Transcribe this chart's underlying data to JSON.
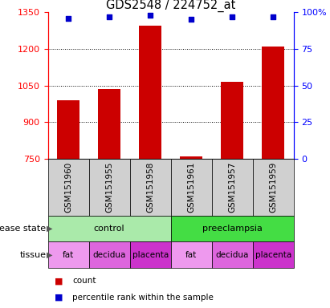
{
  "title": "GDS2548 / 224752_at",
  "samples": [
    "GSM151960",
    "GSM151955",
    "GSM151958",
    "GSM151961",
    "GSM151957",
    "GSM151959"
  ],
  "count_values": [
    990,
    1035,
    1295,
    760,
    1065,
    1210
  ],
  "percentile_values": [
    96,
    97,
    98,
    95,
    97,
    97
  ],
  "ylim_left": [
    750,
    1350
  ],
  "ylim_right": [
    0,
    100
  ],
  "yticks_left": [
    750,
    900,
    1050,
    1200,
    1350
  ],
  "yticks_right": [
    0,
    25,
    50,
    75,
    100
  ],
  "ytick_labels_right": [
    "0",
    "25",
    "50",
    "75",
    "100%"
  ],
  "grid_values": [
    900,
    1050,
    1200
  ],
  "bar_color": "#cc0000",
  "scatter_color": "#0000cc",
  "bg_gray": "#d0d0d0",
  "disease_state": [
    {
      "label": "control",
      "span": [
        0,
        3
      ],
      "color": "#aaeaaa"
    },
    {
      "label": "preeclampsia",
      "span": [
        3,
        6
      ],
      "color": "#44dd44"
    }
  ],
  "tissue": [
    {
      "label": "fat",
      "span": [
        0,
        1
      ],
      "color": "#ee99ee"
    },
    {
      "label": "decidua",
      "span": [
        1,
        2
      ],
      "color": "#dd66dd"
    },
    {
      "label": "placenta",
      "span": [
        2,
        3
      ],
      "color": "#cc33cc"
    },
    {
      "label": "fat",
      "span": [
        3,
        4
      ],
      "color": "#ee99ee"
    },
    {
      "label": "decidua",
      "span": [
        4,
        5
      ],
      "color": "#dd66dd"
    },
    {
      "label": "placenta",
      "span": [
        5,
        6
      ],
      "color": "#cc33cc"
    }
  ],
  "disease_state_label": "disease state",
  "tissue_label": "tissue",
  "legend_count_label": "count",
  "legend_percentile_label": "percentile rank within the sample",
  "bar_width": 0.55,
  "title_fontsize": 10.5,
  "tick_fontsize": 8,
  "xlabel_fontsize": 7.5,
  "annot_fontsize": 8,
  "tissue_fontsize": 7.5
}
